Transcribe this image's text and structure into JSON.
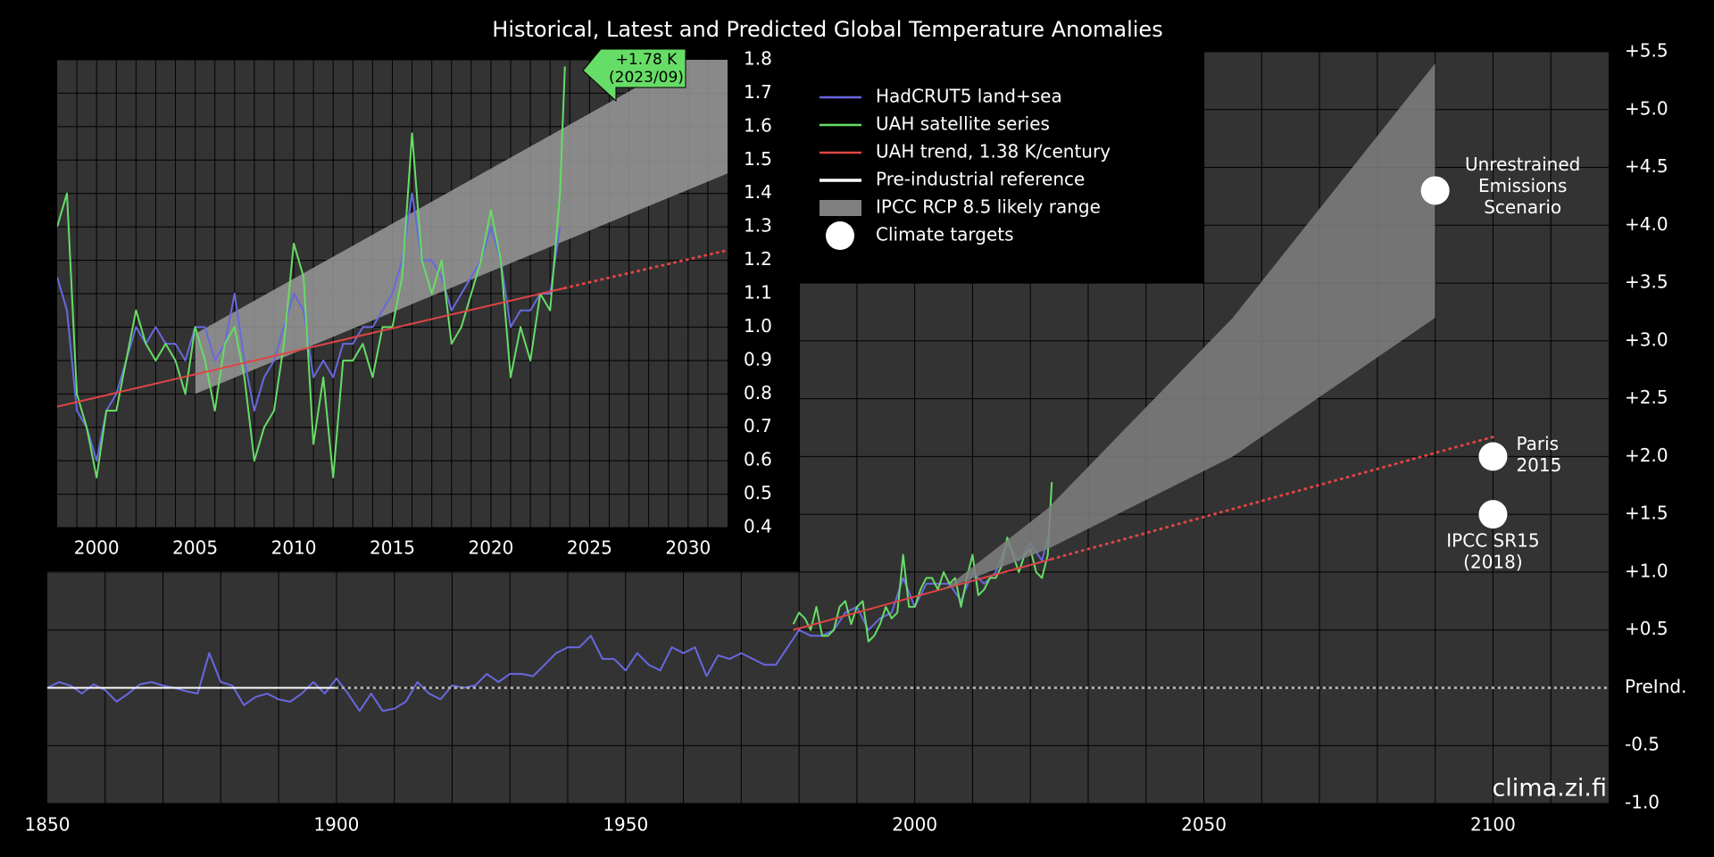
{
  "chart_data": [
    {
      "type": "line",
      "title": "Historical, Latest and Predicted Global Temperature Anomalies",
      "watermark": "clima.zi.fi",
      "xlim": [
        1850,
        2120
      ],
      "xticks": [
        1850,
        1900,
        1950,
        2000,
        2050,
        2100
      ],
      "xgrid": [
        1860,
        1870,
        1880,
        1890,
        1900,
        1910,
        1920,
        1930,
        1940,
        1950,
        1960,
        1970,
        1980,
        1990,
        2000,
        2010,
        2020,
        2030,
        2040,
        2050,
        2060,
        2070,
        2080,
        2090,
        2100,
        2110
      ],
      "ylim": [
        -1,
        5.5
      ],
      "yticks": [
        {
          "value": -1,
          "label": "-1.0"
        },
        -0.5,
        {
          "value": 0,
          "label": "PreInd."
        },
        {
          "value": 0.5,
          "label": "+0.5"
        },
        {
          "value": 1,
          "label": "+1.0"
        },
        {
          "value": 1.5,
          "label": "+1.5"
        },
        {
          "value": 2,
          "label": "+2.0"
        },
        {
          "value": 2.5,
          "label": "+2.5"
        },
        {
          "value": 3,
          "label": "+3.0"
        },
        {
          "value": 3.5,
          "label": "+3.5"
        },
        {
          "value": 4,
          "label": "+4.0"
        },
        {
          "value": 4.5,
          "label": "+4.5"
        },
        {
          "value": 5,
          "label": "+5.0"
        },
        {
          "value": 5.5,
          "label": "+5.5"
        }
      ],
      "grid": true,
      "series": [
        {
          "name": "HadCRUT5 land+sea",
          "kind": "line",
          "color": "#6868e0",
          "x": [
            1850,
            1852,
            1854,
            1856,
            1858,
            1860,
            1862,
            1864,
            1866,
            1868,
            1870,
            1872,
            1874,
            1876,
            1878,
            1880,
            1882,
            1884,
            1886,
            1888,
            1890,
            1892,
            1894,
            1896,
            1898,
            1900,
            1902,
            1904,
            1906,
            1908,
            1910,
            1912,
            1914,
            1916,
            1918,
            1920,
            1922,
            1924,
            1926,
            1928,
            1930,
            1932,
            1934,
            1936,
            1938,
            1940,
            1942,
            1944,
            1946,
            1948,
            1950,
            1952,
            1954,
            1956,
            1958,
            1960,
            1962,
            1964,
            1966,
            1968,
            1970,
            1972,
            1974,
            1976,
            1978,
            1980,
            1982,
            1984,
            1986,
            1988,
            1990,
            1992,
            1994,
            1996,
            1998,
            2000,
            2002,
            2004,
            2006,
            2008,
            2010,
            2012,
            2014,
            2016,
            2018,
            2020,
            2022,
            2023
          ],
          "values": [
            0.0,
            0.05,
            0.02,
            -0.05,
            0.03,
            -0.02,
            -0.12,
            -0.05,
            0.03,
            0.05,
            0.02,
            0.0,
            -0.03,
            -0.05,
            0.3,
            0.05,
            0.02,
            -0.15,
            -0.08,
            -0.05,
            -0.1,
            -0.12,
            -0.05,
            0.05,
            -0.05,
            0.08,
            -0.05,
            -0.2,
            -0.05,
            -0.2,
            -0.18,
            -0.12,
            0.05,
            -0.05,
            -0.1,
            0.02,
            0.0,
            0.02,
            0.12,
            0.05,
            0.12,
            0.12,
            0.1,
            0.2,
            0.3,
            0.35,
            0.35,
            0.45,
            0.25,
            0.25,
            0.15,
            0.3,
            0.2,
            0.15,
            0.35,
            0.3,
            0.35,
            0.1,
            0.28,
            0.25,
            0.3,
            0.25,
            0.2,
            0.2,
            0.35,
            0.5,
            0.45,
            0.45,
            0.5,
            0.65,
            0.7,
            0.5,
            0.6,
            0.65,
            0.95,
            0.7,
            0.9,
            0.9,
            0.9,
            0.75,
            1.0,
            0.9,
            1.0,
            1.25,
            1.1,
            1.25,
            1.1,
            1.3
          ]
        },
        {
          "name": "UAH satellite series",
          "kind": "line",
          "color": "#66dd66",
          "x": [
            1979,
            1980,
            1981,
            1982,
            1983,
            1984,
            1985,
            1986,
            1987,
            1988,
            1989,
            1990,
            1991,
            1992,
            1993,
            1994,
            1995,
            1996,
            1997,
            1998,
            1999,
            2000,
            2001,
            2002,
            2003,
            2004,
            2005,
            2006,
            2007,
            2008,
            2009,
            2010,
            2011,
            2012,
            2013,
            2014,
            2015,
            2016,
            2017,
            2018,
            2019,
            2020,
            2021,
            2022,
            2023,
            2023.7
          ],
          "values": [
            0.55,
            0.65,
            0.6,
            0.5,
            0.7,
            0.45,
            0.45,
            0.5,
            0.7,
            0.75,
            0.55,
            0.7,
            0.75,
            0.4,
            0.45,
            0.55,
            0.7,
            0.6,
            0.65,
            1.15,
            0.7,
            0.7,
            0.85,
            0.95,
            0.95,
            0.85,
            1.0,
            0.9,
            0.95,
            0.7,
            0.95,
            1.15,
            0.8,
            0.85,
            0.95,
            0.95,
            1.05,
            1.3,
            1.15,
            1.0,
            1.15,
            1.2,
            1.0,
            0.95,
            1.15,
            1.78
          ]
        },
        {
          "name": "UAH trend, 1.38 K/century",
          "kind": "line",
          "color": "#e04444",
          "x": [
            1979,
            2023.75
          ],
          "values": [
            0.5,
            1.114
          ],
          "projection": {
            "x": [
              2023.75,
              2100
            ],
            "values": [
              1.114,
              2.17
            ],
            "color": "#e04444"
          }
        },
        {
          "name": "Pre-industrial reference",
          "kind": "line",
          "color": "#ffffff",
          "x": [
            1850,
            1900
          ],
          "values": [
            0,
            0
          ],
          "projection": {
            "x": [
              1900,
              2120
            ],
            "values": [
              0,
              0
            ],
            "color": "#aaaaaa"
          }
        },
        {
          "name": "IPCC RCP 8.5 likely range",
          "kind": "band",
          "color": "#808080",
          "x": [
            2005,
            2023,
            2055,
            2090
          ],
          "lower": [
            0.85,
            1.2,
            2.0,
            3.2
          ],
          "upper": [
            0.85,
            1.55,
            3.2,
            5.4
          ]
        },
        {
          "name": "Climate targets",
          "kind": "points",
          "color": "#ffffff",
          "x": [
            2090,
            2100,
            2100
          ],
          "values": [
            4.3,
            2.0,
            1.5
          ],
          "labels": [
            [
              "Unrestrained",
              "Emissions",
              "Scenario"
            ],
            [
              "Paris",
              "2015"
            ],
            [
              "IPCC SR15",
              "(2018)"
            ]
          ]
        }
      ]
    },
    {
      "type": "line",
      "xlim": [
        1998,
        2032
      ],
      "xticks": [
        2000,
        2005,
        2010,
        2015,
        2020,
        2025,
        2030
      ],
      "xgrid": [
        1999,
        2000,
        2001,
        2002,
        2003,
        2004,
        2005,
        2006,
        2007,
        2008,
        2009,
        2010,
        2011,
        2012,
        2013,
        2014,
        2015,
        2016,
        2017,
        2018,
        2019,
        2020,
        2021,
        2022,
        2023,
        2024,
        2025,
        2026,
        2027,
        2028,
        2029,
        2030,
        2031
      ],
      "ylim": [
        0.4,
        1.8
      ],
      "yticks": [
        0.4,
        0.5,
        0.6,
        0.7,
        0.8,
        0.9,
        {
          "value": 1,
          "label": "1.0"
        },
        1.1,
        1.2,
        1.3,
        1.4,
        1.5,
        1.6,
        1.7,
        1.8
      ],
      "grid": true,
      "annotation": [
        "+1.78 K",
        "(2023/09)"
      ],
      "annotation_color": "#66dd66",
      "series": [
        {
          "kind": "band",
          "color": "#999999",
          "x": [
            2005,
            2032
          ],
          "lower": [
            0.8,
            1.46
          ],
          "upper": [
            0.98,
            1.87
          ]
        },
        {
          "kind": "line",
          "color": "#6868e0",
          "x": [
            1998,
            1998.5,
            1999,
            1999.5,
            2000,
            2000.5,
            2001,
            2001.5,
            2002,
            2002.5,
            2003,
            2003.5,
            2004,
            2004.5,
            2005,
            2005.5,
            2006,
            2006.5,
            2007,
            2007.5,
            2008,
            2008.5,
            2009,
            2009.5,
            2010,
            2010.5,
            2011,
            2011.5,
            2012,
            2012.5,
            2013,
            2013.5,
            2014,
            2014.5,
            2015,
            2015.5,
            2016,
            2016.5,
            2017,
            2017.5,
            2018,
            2018.5,
            2019,
            2019.5,
            2020,
            2020.5,
            2021,
            2021.5,
            2022,
            2022.5,
            2023,
            2023.5
          ],
          "values": [
            1.15,
            1.05,
            0.75,
            0.7,
            0.6,
            0.75,
            0.8,
            0.9,
            1.0,
            0.95,
            1.0,
            0.95,
            0.95,
            0.9,
            1.0,
            1.0,
            0.9,
            0.95,
            1.1,
            0.9,
            0.75,
            0.85,
            0.9,
            1.0,
            1.1,
            1.05,
            0.85,
            0.9,
            0.85,
            0.95,
            0.95,
            1.0,
            1.0,
            1.05,
            1.1,
            1.2,
            1.4,
            1.2,
            1.2,
            1.15,
            1.05,
            1.1,
            1.15,
            1.2,
            1.3,
            1.2,
            1.0,
            1.05,
            1.05,
            1.1,
            1.1,
            1.3
          ]
        },
        {
          "kind": "line",
          "color": "#66dd66",
          "x": [
            1998,
            1998.5,
            1999,
            1999.5,
            2000,
            2000.5,
            2001,
            2001.5,
            2002,
            2002.5,
            2003,
            2003.5,
            2004,
            2004.5,
            2005,
            2005.5,
            2006,
            2006.5,
            2007,
            2007.5,
            2008,
            2008.5,
            2009,
            2009.5,
            2010,
            2010.5,
            2011,
            2011.5,
            2012,
            2012.5,
            2013,
            2013.5,
            2014,
            2014.5,
            2015,
            2015.5,
            2016,
            2016.5,
            2017,
            2017.5,
            2018,
            2018.5,
            2019,
            2019.5,
            2020,
            2020.5,
            2021,
            2021.5,
            2022,
            2022.5,
            2023,
            2023.5,
            2023.75
          ],
          "values": [
            1.3,
            1.4,
            0.8,
            0.7,
            0.55,
            0.75,
            0.75,
            0.9,
            1.05,
            0.95,
            0.9,
            0.95,
            0.9,
            0.8,
            1.0,
            0.9,
            0.75,
            0.95,
            1.0,
            0.85,
            0.6,
            0.7,
            0.75,
            0.95,
            1.25,
            1.15,
            0.65,
            0.85,
            0.55,
            0.9,
            0.9,
            0.95,
            0.85,
            1.0,
            1.0,
            1.15,
            1.58,
            1.2,
            1.1,
            1.2,
            0.95,
            1.0,
            1.1,
            1.2,
            1.35,
            1.2,
            0.85,
            1.0,
            0.9,
            1.1,
            1.05,
            1.4,
            1.78
          ]
        },
        {
          "kind": "line",
          "color": "#e04444",
          "x": [
            1998,
            2023.75
          ],
          "values": [
            0.762,
            1.117
          ],
          "projection": {
            "x": [
              2023.75,
              2032
            ],
            "values": [
              1.117,
              1.23
            ],
            "color": "#e04444"
          }
        }
      ]
    }
  ]
}
